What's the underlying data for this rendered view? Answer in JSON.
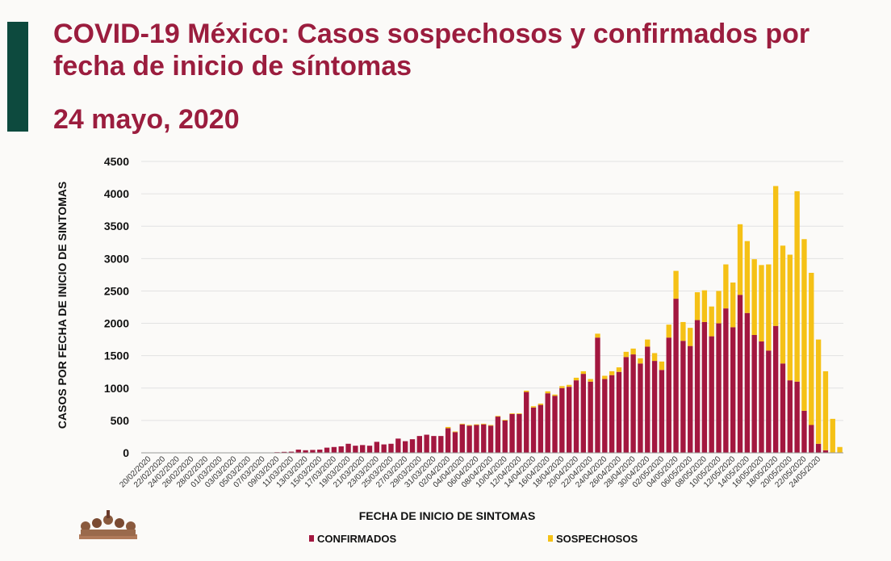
{
  "header": {
    "title": "COVID-19 México: Casos sospechosos y confirmados por fecha de inicio de síntomas",
    "date": "24 mayo, 2020"
  },
  "colors": {
    "accent": "#0d4a3e",
    "title": "#9b1d3e",
    "confirmados": "#a3173f",
    "sospechosos": "#f5c116"
  },
  "chart_data": {
    "type": "bar",
    "stacked": true,
    "xlabel": "FECHA DE INICIO DE SINTOMAS",
    "ylabel": "CASOS POR FECHA DE INICIO DE SINTOMAS",
    "ylim": [
      0,
      4500
    ],
    "yticks": [
      0,
      500,
      1000,
      1500,
      2000,
      2500,
      3000,
      3500,
      4000,
      4500
    ],
    "grid": true,
    "legend_placement": "bottom",
    "start_date": "2020-02-20",
    "xtick_labels": [
      "20/02/2020",
      "22/02/2020",
      "24/02/2020",
      "26/02/2020",
      "28/02/2020",
      "01/03/2020",
      "03/03/2020",
      "05/03/2020",
      "07/03/2020",
      "09/03/2020",
      "11/03/2020",
      "13/03/2020",
      "15/03/2020",
      "17/03/2020",
      "19/03/2020",
      "21/03/2020",
      "23/03/2020",
      "25/03/2020",
      "27/03/2020",
      "29/03/2020",
      "31/03/2020",
      "02/04/2020",
      "04/04/2020",
      "06/04/2020",
      "08/04/2020",
      "10/04/2020",
      "12/04/2020",
      "14/04/2020",
      "16/04/2020",
      "18/04/2020",
      "20/04/2020",
      "22/04/2020",
      "24/04/2020",
      "26/04/2020",
      "28/04/2020",
      "30/04/2020",
      "02/05/2020",
      "04/05/2020",
      "06/05/2020",
      "08/05/2020",
      "10/05/2020",
      "12/05/2020",
      "14/05/2020",
      "16/05/2020",
      "18/05/2020",
      "20/05/2020",
      "22/05/2020",
      "24/05/2020"
    ],
    "series": [
      {
        "name": "CONFIRMADOS",
        "values": [
          1,
          1,
          0,
          1,
          1,
          1,
          1,
          1,
          1,
          1,
          1,
          1,
          1,
          1,
          1,
          2,
          3,
          5,
          10,
          15,
          18,
          50,
          40,
          45,
          50,
          80,
          90,
          100,
          140,
          110,
          120,
          110,
          170,
          130,
          140,
          220,
          180,
          210,
          260,
          280,
          260,
          260,
          380,
          320,
          440,
          420,
          430,
          440,
          420,
          560,
          500,
          600,
          600,
          940,
          700,
          740,
          920,
          880,
          1000,
          1020,
          1120,
          1220,
          1100,
          1780,
          1140,
          1200,
          1250,
          1480,
          1520,
          1380,
          1640,
          1420,
          1280,
          1780,
          2380,
          1730,
          1650,
          2050,
          2020,
          1800,
          2000,
          2230,
          1940,
          2440,
          2160,
          1820,
          1720,
          1580,
          1960,
          1380,
          1120,
          1100,
          650,
          430,
          140,
          40,
          5,
          0
        ],
        "color": "#a3173f"
      },
      {
        "name": "SOSPECHOSOS",
        "values": [
          0,
          0,
          0,
          0,
          0,
          0,
          0,
          0,
          0,
          0,
          0,
          0,
          0,
          0,
          0,
          0,
          0,
          0,
          0,
          0,
          0,
          0,
          0,
          0,
          0,
          0,
          0,
          0,
          0,
          0,
          0,
          0,
          0,
          0,
          0,
          0,
          0,
          0,
          0,
          0,
          0,
          0,
          20,
          10,
          10,
          10,
          10,
          10,
          10,
          10,
          10,
          10,
          10,
          20,
          20,
          20,
          30,
          20,
          30,
          30,
          40,
          40,
          40,
          60,
          50,
          60,
          70,
          80,
          90,
          80,
          110,
          120,
          130,
          200,
          430,
          290,
          280,
          430,
          490,
          460,
          500,
          680,
          690,
          1090,
          1110,
          1170,
          1180,
          1330,
          2160,
          1820,
          1940,
          2940,
          2650,
          2350,
          1610,
          1220,
          520,
          90
        ],
        "color": "#f5c116"
      }
    ]
  },
  "legend": [
    {
      "label": "CONFIRMADOS",
      "color": "#a3173f"
    },
    {
      "label": "SOSPECHOSOS",
      "color": "#f5c116"
    }
  ],
  "logo_icon": "government-logo-icon"
}
